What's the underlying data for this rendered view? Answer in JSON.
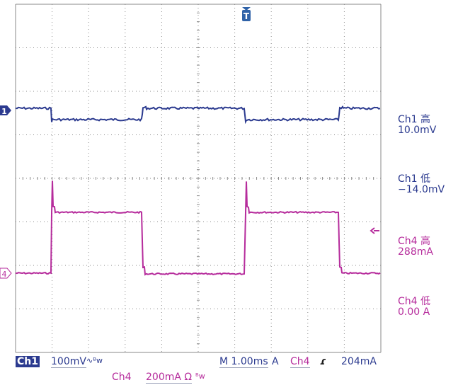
{
  "markers": {
    "trigger": "T",
    "ch1": "1",
    "ch4": "4"
  },
  "measurements": {
    "ch1_high_label": "Ch1 高",
    "ch1_high_value": "10.0mV",
    "ch1_low_label": "Ch1 低",
    "ch1_low_value": "−14.0mV",
    "ch4_high_label": "Ch4 高",
    "ch4_high_value": "288mA",
    "ch4_low_label": "Ch4 低",
    "ch4_low_value": "0.00 A"
  },
  "status": {
    "ch1_label": "Ch1",
    "ch1_scale": "100mV",
    "ch1_bw_symbol": "∿ᴮw",
    "timebase": "M 1.00ms",
    "trigger_mode": "A",
    "trigger_source": "Ch4",
    "trigger_slope": "ɾ",
    "trigger_level": "204mA",
    "ch4_label": "Ch4",
    "ch4_scale": "200mA Ω",
    "ch4_bw_symbol": "ᴮw"
  },
  "colors": {
    "ch1": "#2b3a8f",
    "ch4": "#b62c9c",
    "grid": "#8a8a8a",
    "background": "#ffffff"
  }
}
